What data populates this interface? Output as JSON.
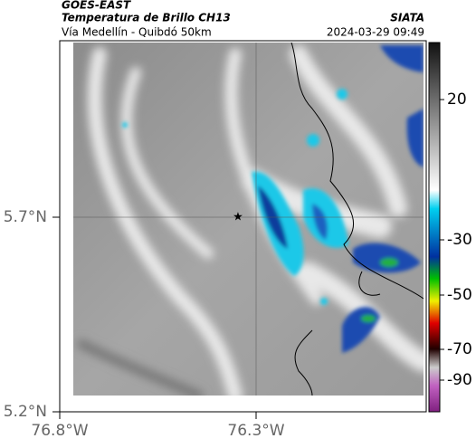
{
  "header": {
    "title": "GOES-EAST",
    "subtitle": "Temperatura de Brillo CH13",
    "route": "Vía Medellín - Quibdó 50km",
    "source": "SIATA",
    "datetime": "2024-03-29 09:49"
  },
  "map": {
    "lat_ticks": [
      {
        "value": 5.7,
        "label": "5.7°N"
      },
      {
        "value": 5.2,
        "label": "5.2°N"
      }
    ],
    "lon_ticks": [
      {
        "value": -76.8,
        "label": "76.8°W"
      },
      {
        "value": -76.3,
        "label": "76.3°W"
      }
    ]
  },
  "colorbar": {
    "ticks": [
      20,
      -30,
      -50,
      -70,
      -90
    ]
  }
}
